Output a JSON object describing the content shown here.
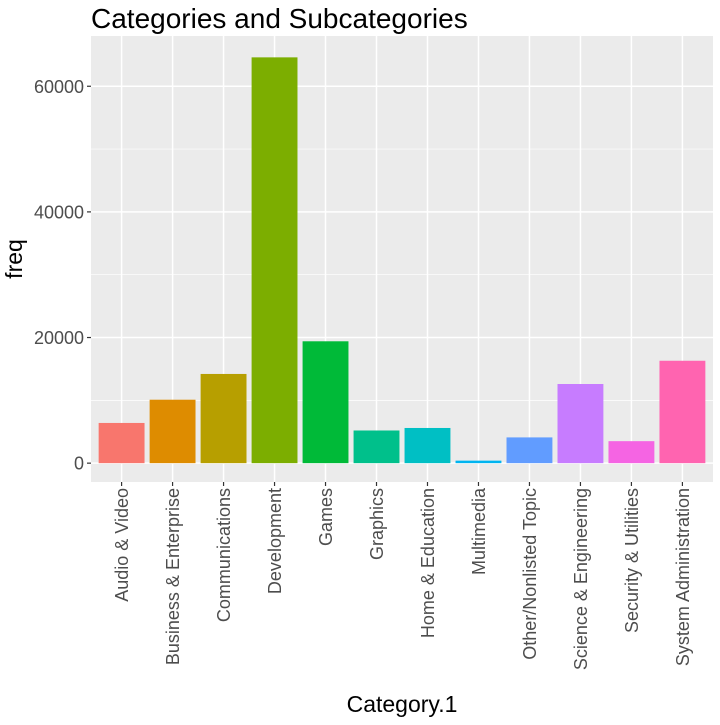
{
  "chart_data": {
    "type": "bar",
    "title": "Categories and Subcategories",
    "xlabel": "Category.1",
    "ylabel": "freq",
    "ylim": [
      -3000,
      68000
    ],
    "yticks": [
      0,
      20000,
      40000,
      60000
    ],
    "ytick_labels": [
      "0",
      "20000",
      "40000",
      "60000"
    ],
    "grid": true,
    "legend": "none",
    "categories": [
      "Audio & Video",
      "Business & Enterprise",
      "Communications",
      "Development",
      "Games",
      "Graphics",
      "Home & Education",
      "Multimedia",
      "Other/Nonlisted Topic",
      "Science & Engineering",
      "Security & Utilities",
      "System Administration"
    ],
    "values": [
      6400,
      10100,
      14200,
      64600,
      19400,
      5200,
      5600,
      400,
      4100,
      12600,
      3500,
      16300
    ],
    "colors": [
      "#F8766D",
      "#DE8C00",
      "#B79F00",
      "#7CAE00",
      "#00BA38",
      "#00C08B",
      "#00BFC4",
      "#00B4F0",
      "#619CFF",
      "#C77CFF",
      "#F564E3",
      "#FF64B0"
    ],
    "panel_background": "#EBEBEB",
    "grid_color": "#FFFFFF"
  }
}
